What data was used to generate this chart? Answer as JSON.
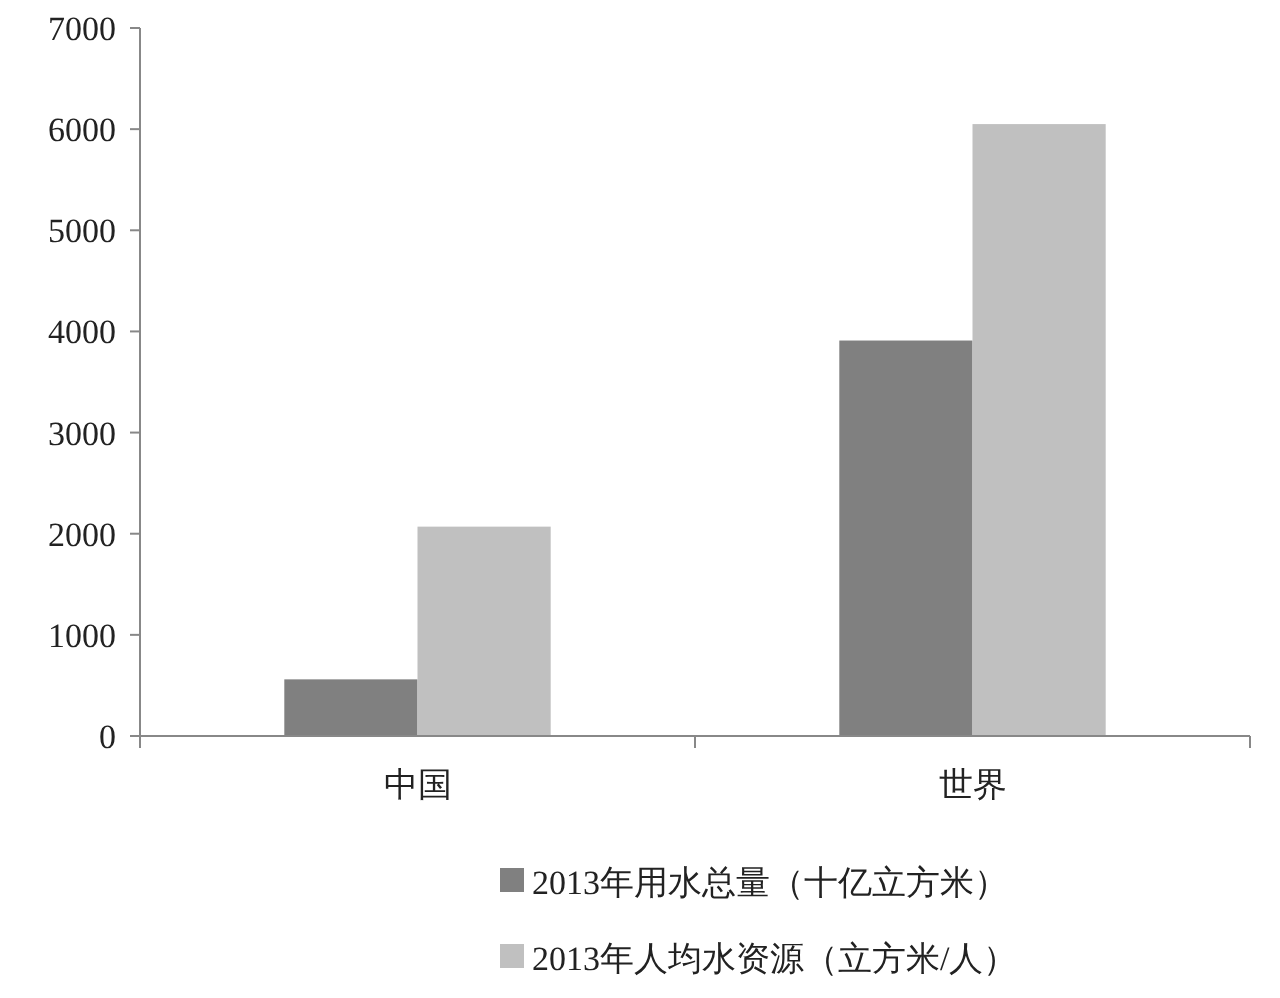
{
  "chart_data": {
    "type": "bar",
    "categories": [
      "中国",
      "世界"
    ],
    "series": [
      {
        "name": "2013年用水总量（十亿立方米）",
        "color": "#808080",
        "values": [
          560,
          3910
        ]
      },
      {
        "name": "2013年人均水资源（立方米/人）",
        "color": "#c0c0c0",
        "values": [
          2070,
          6050
        ]
      }
    ],
    "ylim": [
      0,
      7000
    ],
    "yticks": [
      0,
      1000,
      2000,
      3000,
      4000,
      5000,
      6000,
      7000
    ],
    "legend": "bottom"
  }
}
